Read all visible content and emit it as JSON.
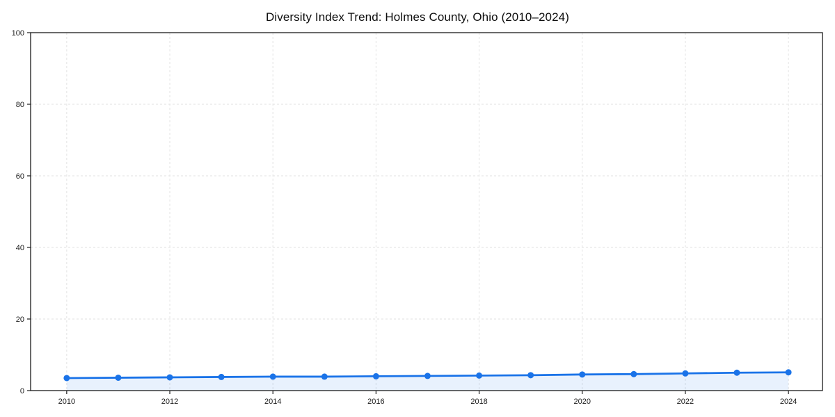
{
  "chart_data": {
    "type": "line",
    "title": "Diversity Index Trend: Holmes County, Ohio (2010–2024)",
    "xlabel": "",
    "ylabel": "",
    "x": [
      2010,
      2011,
      2012,
      2013,
      2014,
      2015,
      2016,
      2017,
      2018,
      2019,
      2020,
      2021,
      2022,
      2023,
      2024
    ],
    "series": [
      {
        "name": "Diversity Index",
        "values": [
          3.5,
          3.6,
          3.7,
          3.8,
          3.9,
          3.9,
          4.0,
          4.1,
          4.2,
          4.3,
          4.5,
          4.6,
          4.8,
          5.0,
          5.1
        ]
      }
    ],
    "ylim": [
      0,
      100
    ],
    "xlim": [
      2009.3,
      2024.66
    ],
    "y_ticks": [
      0,
      20,
      40,
      60,
      80,
      100
    ],
    "y_tick_labels": [
      "0",
      "20",
      "40",
      "60",
      "80",
      "100"
    ],
    "x_ticks": [
      2010,
      2012,
      2014,
      2016,
      2018,
      2020,
      2022,
      2024
    ],
    "x_tick_labels": [
      "2010",
      "2012",
      "2014",
      "2016",
      "2018",
      "2020",
      "2022",
      "2024"
    ],
    "grid": true,
    "grid_style": "dashed",
    "legend": "none",
    "colors": {
      "line": "#1a73e8",
      "marker": "#1a73e8",
      "area_fill": "rgba(26,115,232,0.10)",
      "grid": "#e2e2e2",
      "spine": "#1a1a1a",
      "tick_text": "#1a1a1a",
      "background": "#ffffff"
    },
    "marker": "circle",
    "marker_radius": 4.5,
    "line_width": 2.8
  }
}
